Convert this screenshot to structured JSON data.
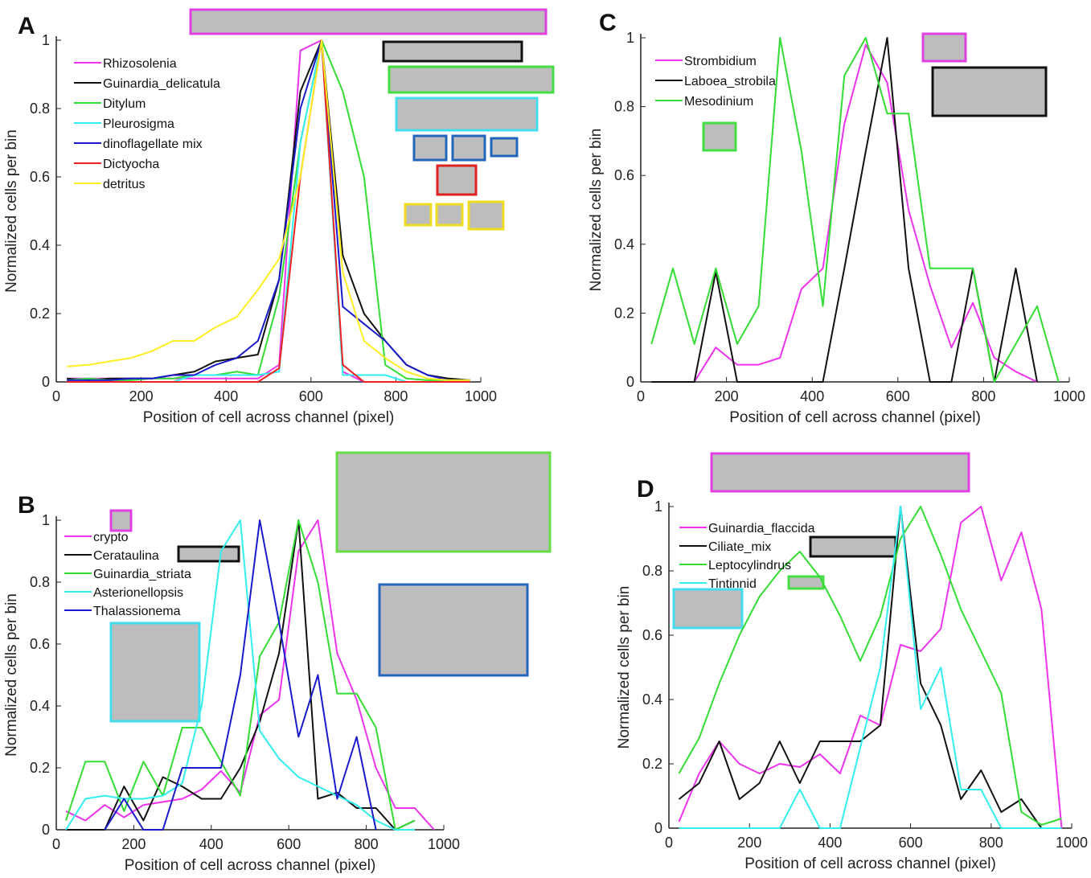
{
  "chart_data": [
    {
      "type": "line",
      "label": "A",
      "y_label": "Normalized cells per bin",
      "x_label": "Position of cell across channel (pixel)",
      "x": [
        25,
        75,
        125,
        175,
        225,
        275,
        325,
        375,
        425,
        475,
        525,
        575,
        625,
        675,
        725,
        775,
        825,
        875,
        925,
        975
      ],
      "xlim": [
        0,
        1000
      ],
      "xticks": [
        0,
        200,
        400,
        600,
        800,
        1000
      ],
      "ylim": [
        0,
        1
      ],
      "yticks": [
        0,
        0.2,
        0.4,
        0.6,
        0.8,
        1
      ],
      "series": [
        {
          "name": "Rhizosolenia",
          "color": "#ee33ee",
          "values": [
            0.01,
            0.01,
            0.01,
            0.01,
            0.01,
            0.01,
            0.01,
            0.01,
            0.01,
            0.01,
            0.05,
            0.97,
            1.0,
            0.03,
            0,
            0,
            0,
            0,
            0,
            0
          ]
        },
        {
          "name": "Guinardia_delicatula",
          "color": "#111111",
          "values": [
            0.01,
            0.005,
            0.01,
            0.01,
            0.01,
            0.02,
            0.03,
            0.06,
            0.07,
            0.08,
            0.3,
            0.85,
            1.0,
            0.37,
            0.2,
            0.12,
            0.05,
            0.02,
            0.01,
            0.005
          ]
        },
        {
          "name": "Ditylum",
          "color": "#33dd33",
          "values": [
            0.005,
            0.01,
            0.005,
            0.005,
            0.01,
            0.01,
            0.02,
            0.02,
            0.03,
            0.02,
            0.25,
            0.7,
            1.0,
            0.85,
            0.6,
            0.05,
            0.01,
            0.005,
            0.005,
            0.005
          ]
        },
        {
          "name": "Pleurosigma",
          "color": "#33eeee",
          "values": [
            0,
            0,
            0,
            0,
            0,
            0,
            0.02,
            0.02,
            0.02,
            0.02,
            0.03,
            0.7,
            1.0,
            0.02,
            0.02,
            0.02,
            0,
            0,
            0,
            0
          ]
        },
        {
          "name": "dinoflagellate mix",
          "color": "#1a1acc",
          "values": [
            0.005,
            0.005,
            0.005,
            0.01,
            0.01,
            0.02,
            0.02,
            0.05,
            0.07,
            0.12,
            0.3,
            0.8,
            1.0,
            0.22,
            0.17,
            0.12,
            0.05,
            0.02,
            0.005,
            0.005
          ]
        },
        {
          "name": "Dictyocha",
          "color": "#ee2222",
          "values": [
            0,
            0,
            0,
            0,
            0,
            0,
            0,
            0,
            0,
            0,
            0.04,
            0.6,
            1.0,
            0.05,
            0,
            0,
            0,
            0,
            0,
            0
          ]
        },
        {
          "name": "detritus",
          "color": "#ffee22",
          "values": [
            0.045,
            0.05,
            0.06,
            0.07,
            0.09,
            0.12,
            0.12,
            0.16,
            0.19,
            0.27,
            0.36,
            0.6,
            1.0,
            0.32,
            0.12,
            0.07,
            0.03,
            0.01,
            0.005,
            0.005
          ]
        }
      ]
    },
    {
      "type": "line",
      "label": "B",
      "y_label": "Normalized cells per bin",
      "x_label": "Position of cell across channel (pixel)",
      "x": [
        25,
        75,
        125,
        175,
        225,
        275,
        325,
        375,
        425,
        475,
        525,
        575,
        625,
        675,
        725,
        775,
        825,
        875,
        925,
        975
      ],
      "xlim": [
        0,
        1000
      ],
      "xticks": [
        0,
        200,
        400,
        600,
        800,
        1000
      ],
      "ylim": [
        0,
        1
      ],
      "yticks": [
        0,
        0.2,
        0.4,
        0.6,
        0.8,
        1
      ],
      "series": [
        {
          "name": "crypto",
          "color": "#ee33ee",
          "values": [
            0.06,
            0.03,
            0.08,
            0.04,
            0.08,
            0.09,
            0.1,
            0.13,
            0.19,
            0.12,
            0.37,
            0.42,
            0.9,
            1.0,
            0.57,
            0.42,
            0.2,
            0.07,
            0.07,
            0
          ]
        },
        {
          "name": "Cerataulina",
          "color": "#111111",
          "values": [
            0,
            0,
            0,
            0.14,
            0.03,
            0.17,
            0.14,
            0.1,
            0.1,
            0.2,
            0.35,
            0.57,
            1.0,
            0.1,
            0.12,
            0.07,
            0.07,
            0,
            0.03,
            null
          ]
        },
        {
          "name": "Guinardia_striata",
          "color": "#33dd33",
          "values": [
            0.03,
            0.22,
            0.22,
            0.06,
            0.22,
            0.11,
            0.33,
            0.33,
            0.22,
            0.11,
            0.56,
            0.67,
            1.0,
            0.8,
            0.44,
            0.44,
            0.33,
            0,
            0.03,
            null
          ]
        },
        {
          "name": "Asterionellopsis",
          "color": "#33eeee",
          "values": [
            0,
            0.1,
            0.11,
            0.1,
            0.1,
            0.11,
            0.15,
            0.4,
            0.9,
            1.0,
            0.32,
            0.23,
            0.17,
            0.14,
            0.11,
            0.08,
            0.03,
            0,
            0,
            null
          ]
        },
        {
          "name": "Thalassionema",
          "color": "#1a1acc",
          "values": [
            null,
            null,
            0,
            0.1,
            0,
            0,
            0.2,
            0.2,
            0.2,
            0.5,
            1.0,
            0.67,
            0.3,
            0.5,
            0.1,
            0.3,
            0,
            null,
            null,
            null
          ]
        }
      ]
    },
    {
      "type": "line",
      "label": "C",
      "y_label": "Normalized cells per bin",
      "x_label": "Position of cell across channel (pixel)",
      "x": [
        25,
        75,
        125,
        175,
        225,
        275,
        325,
        375,
        425,
        475,
        525,
        575,
        625,
        675,
        725,
        775,
        825,
        875,
        925,
        975
      ],
      "xlim": [
        0,
        1000
      ],
      "xticks": [
        0,
        200,
        400,
        600,
        800,
        1000
      ],
      "ylim": [
        0,
        1
      ],
      "yticks": [
        0,
        0.2,
        0.4,
        0.6,
        0.8,
        1
      ],
      "series": [
        {
          "name": "Strombidium",
          "color": "#ee33ee",
          "values": [
            null,
            null,
            0,
            0.1,
            0.05,
            0.05,
            0.07,
            0.27,
            0.33,
            0.75,
            0.98,
            0.87,
            0.5,
            0.28,
            0.1,
            0.23,
            0.07,
            0.03,
            0,
            null
          ]
        },
        {
          "name": "Laboea_strobila",
          "color": "#111111",
          "values": [
            0,
            0,
            0,
            0.32,
            0,
            0,
            0,
            0,
            0,
            0.33,
            0.67,
            1.0,
            0.33,
            0,
            0,
            0.33,
            0,
            0.33,
            0,
            null
          ]
        },
        {
          "name": "Mesodinium",
          "color": "#33dd33",
          "values": [
            0.11,
            0.33,
            0.11,
            0.33,
            0.11,
            0.22,
            1.0,
            0.67,
            0.22,
            0.89,
            1.0,
            0.78,
            0.78,
            0.33,
            0.33,
            0.33,
            0,
            0.11,
            0.22,
            0
          ]
        }
      ]
    },
    {
      "type": "line",
      "label": "D",
      "y_label": "Normalized cells per bin",
      "x_label": "Position of cell across channel (pixel)",
      "x": [
        25,
        75,
        125,
        175,
        225,
        275,
        325,
        375,
        425,
        475,
        525,
        575,
        625,
        675,
        725,
        775,
        825,
        875,
        925,
        975
      ],
      "xlim": [
        0,
        1000
      ],
      "xticks": [
        0,
        200,
        400,
        600,
        800,
        1000
      ],
      "ylim": [
        0,
        1
      ],
      "yticks": [
        0,
        0.2,
        0.4,
        0.6,
        0.8,
        1
      ],
      "series": [
        {
          "name": "Guinardia_flaccida",
          "color": "#ee33ee",
          "values": [
            0.02,
            0.17,
            0.27,
            0.2,
            0.17,
            0.2,
            0.19,
            0.23,
            0.17,
            0.35,
            0.32,
            0.57,
            0.55,
            0.62,
            0.95,
            1.0,
            0.77,
            0.92,
            0.68,
            0
          ]
        },
        {
          "name": "Ciliate_mix",
          "color": "#111111",
          "values": [
            0.09,
            0.14,
            0.27,
            0.09,
            0.14,
            0.27,
            0.14,
            0.27,
            0.27,
            0.27,
            0.32,
            1.0,
            0.45,
            0.32,
            0.09,
            0.18,
            0.05,
            0.09,
            0,
            null
          ]
        },
        {
          "name": "Leptocylindrus",
          "color": "#33dd33",
          "values": [
            0.17,
            0.28,
            0.45,
            0.6,
            0.72,
            0.8,
            0.86,
            0.78,
            0.66,
            0.52,
            0.66,
            0.9,
            1.0,
            0.85,
            0.68,
            0.55,
            0.42,
            0.05,
            0.01,
            0.03
          ]
        },
        {
          "name": "Tintinnid",
          "color": "#33eeee",
          "values": [
            0,
            0,
            0,
            0,
            0,
            0,
            0.12,
            0,
            0,
            0.25,
            0.5,
            1.0,
            0.37,
            0.5,
            0.12,
            0.12,
            0,
            0,
            0,
            0
          ]
        }
      ]
    }
  ]
}
